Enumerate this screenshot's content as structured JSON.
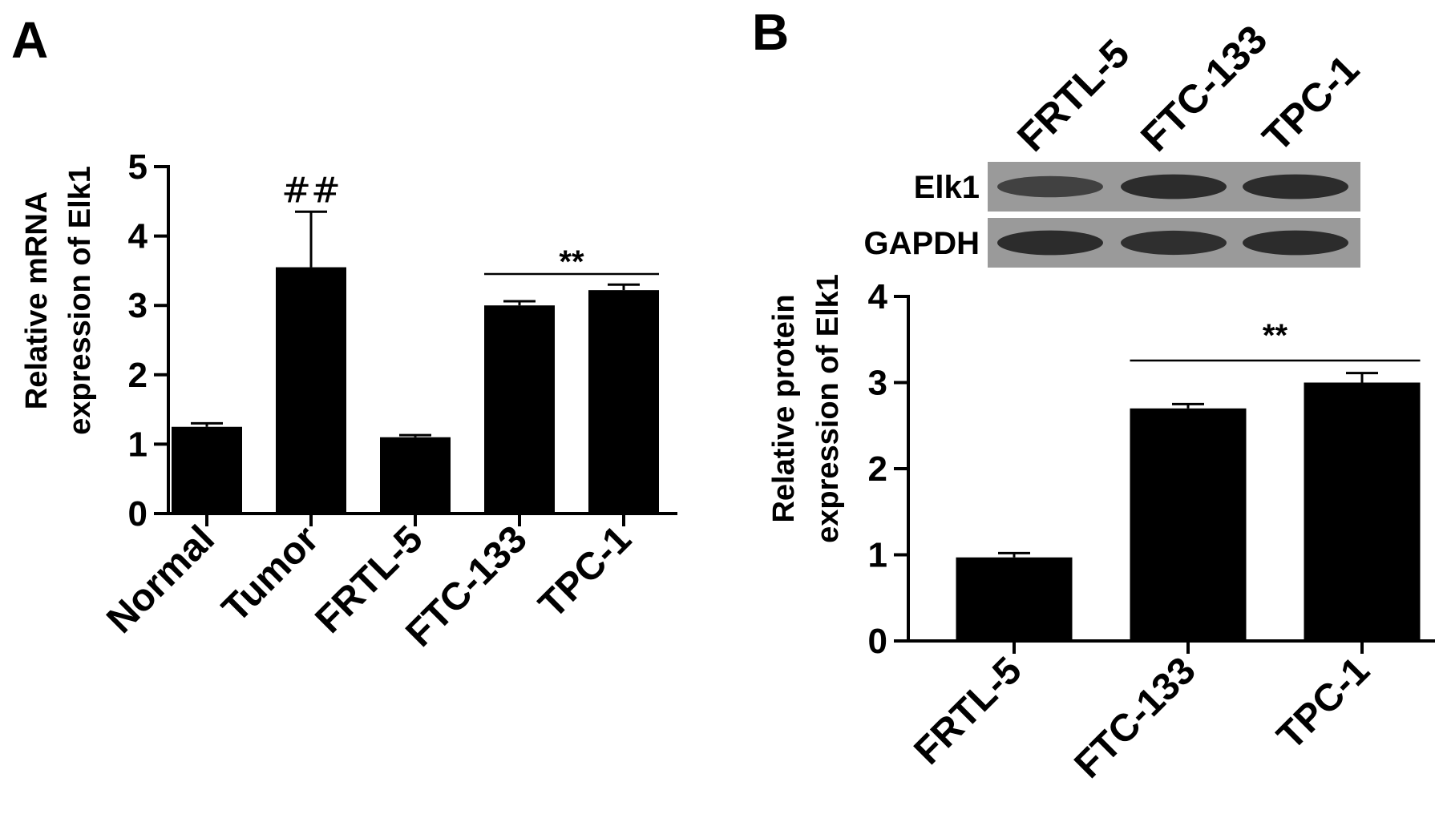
{
  "panels": {
    "a_label": "A",
    "b_label": "B"
  },
  "chart_data": [
    {
      "type": "bar",
      "panel": "A",
      "categories": [
        "Normal",
        "Tumor",
        "FRTL-5",
        "FTC-133",
        "TPC-1"
      ],
      "values": [
        1.25,
        3.55,
        1.1,
        3.0,
        3.22
      ],
      "errors": [
        0.05,
        0.8,
        0.03,
        0.06,
        0.08
      ],
      "ylabel_line1": "Relative  mRNA",
      "ylabel_line2": "expression of Elk1",
      "ylim": [
        0,
        5
      ],
      "yticks": [
        0,
        1,
        2,
        3,
        4,
        5
      ],
      "annotations": [
        {
          "text": "##",
          "category": "Tumor"
        },
        {
          "text": "**",
          "span": [
            "FTC-133",
            "TPC-1"
          ]
        }
      ]
    },
    {
      "type": "bar",
      "panel": "B",
      "categories": [
        "FRTL-5",
        "FTC-133",
        "TPC-1"
      ],
      "values": [
        0.97,
        2.7,
        3.0
      ],
      "errors": [
        0.05,
        0.05,
        0.11
      ],
      "ylabel_line1": "Relative  protein",
      "ylabel_line2": "expression of Elk1",
      "ylim": [
        0,
        4
      ],
      "yticks": [
        0,
        1,
        2,
        3,
        4
      ],
      "annotations": [
        {
          "text": "**",
          "span": [
            "FTC-133",
            "TPC-1"
          ]
        }
      ]
    }
  ],
  "western_blot": {
    "lanes": [
      "FRTL-5",
      "FTC-133",
      "TPC-1"
    ],
    "rows": [
      {
        "label": "Elk1",
        "intensity": [
          0.55,
          0.9,
          0.9
        ]
      },
      {
        "label": "GAPDH",
        "intensity": [
          0.9,
          0.85,
          0.9
        ]
      }
    ],
    "background": "#9a9a9a",
    "band_color": "#202020"
  }
}
